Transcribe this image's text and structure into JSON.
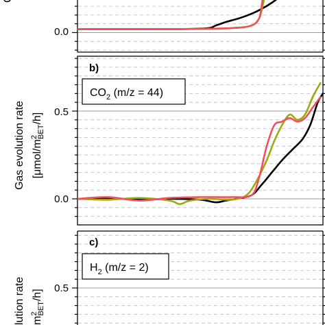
{
  "figure": {
    "panel_a_ylabel_fragment": "C",
    "shared_ylabel_line1": "Gas evolution rate",
    "shared_ylabel_line2_prefix": "[μmol/m",
    "shared_ylabel_line2_sup": "2",
    "shared_ylabel_line2_sub": "BET",
    "shared_ylabel_line2_suffix": "/h]",
    "panel_c_ylabel_line1_fragment": "lution rate",
    "panel_c_ylabel_line2_prefix": "m",
    "panel_c_ylabel_line2_sup": "2",
    "panel_c_ylabel_line2_sub": "BET",
    "panel_c_ylabel_line2_suffix": "/h]",
    "colors": {
      "black": "#000000",
      "olive": "#9aaa10",
      "red": "#f0505a",
      "grid_dash": "#b8b8b8",
      "grid_solid": "#9a9a9a"
    }
  },
  "chart_data": [
    {
      "panel": "a",
      "type": "line",
      "label": "",
      "title": "",
      "ytick_labels": [
        "0.0"
      ],
      "ylim": [
        -0.05,
        0.45
      ],
      "grid": "dashed",
      "series": [
        {
          "color": "black",
          "points": [
            [
              0,
              0.02
            ],
            [
              100,
              0.02
            ],
            [
              200,
              0.02
            ],
            [
              255,
              0.025
            ],
            [
              270,
              0.04
            ],
            [
              290,
              0.06
            ],
            [
              320,
              0.085
            ],
            [
              350,
              0.12
            ],
            [
              380,
              0.17
            ],
            [
              405,
              0.23
            ],
            [
              420,
              0.3
            ],
            [
              430,
              0.35
            ]
          ]
        },
        {
          "color": "olive",
          "points": [
            [
              0,
              0.02
            ],
            [
              100,
              0.02
            ],
            [
              200,
              0.02
            ],
            [
              300,
              0.025
            ],
            [
              340,
              0.04
            ],
            [
              355,
              0.08
            ],
            [
              362,
              0.15
            ],
            [
              368,
              0.24
            ],
            [
              372,
              0.32
            ],
            [
              376,
              0.42
            ]
          ]
        },
        {
          "color": "red",
          "points": [
            [
              0,
              0.02
            ],
            [
              100,
              0.02
            ],
            [
              200,
              0.02
            ],
            [
              300,
              0.025
            ],
            [
              340,
              0.04
            ],
            [
              355,
              0.08
            ],
            [
              360,
              0.15
            ],
            [
              364,
              0.24
            ],
            [
              368,
              0.32
            ],
            [
              371,
              0.42
            ]
          ]
        }
      ]
    },
    {
      "panel": "b",
      "type": "line",
      "label": "b)",
      "legend_text": "CO",
      "legend_sub": "2",
      "legend_suffix": " (m/z = 44)",
      "ytick_labels": [
        "0.0",
        "0.5"
      ],
      "yticks": [
        0,
        0.5
      ],
      "ylim": [
        -0.1,
        0.8
      ],
      "grid": "dashed",
      "series": [
        {
          "color": "black",
          "points": [
            [
              0,
              0
            ],
            [
              60,
              0.005
            ],
            [
              120,
              -0.005
            ],
            [
              180,
              0.0
            ],
            [
              240,
              -0.005
            ],
            [
              270,
              -0.02
            ],
            [
              290,
              -0.01
            ],
            [
              310,
              0.0
            ],
            [
              340,
              0.02
            ],
            [
              360,
              0.08
            ],
            [
              380,
              0.15
            ],
            [
              400,
              0.22
            ],
            [
              420,
              0.28
            ],
            [
              440,
              0.34
            ],
            [
              455,
              0.42
            ],
            [
              470,
              0.55
            ],
            [
              480,
              0.6
            ]
          ]
        },
        {
          "color": "olive",
          "points": [
            [
              0,
              0
            ],
            [
              60,
              -0.005
            ],
            [
              120,
              0.005
            ],
            [
              180,
              -0.01
            ],
            [
              200,
              -0.03
            ],
            [
              220,
              -0.01
            ],
            [
              260,
              0.0
            ],
            [
              300,
              -0.005
            ],
            [
              330,
              0.02
            ],
            [
              350,
              0.1
            ],
            [
              370,
              0.22
            ],
            [
              385,
              0.33
            ],
            [
              400,
              0.42
            ],
            [
              415,
              0.48
            ],
            [
              430,
              0.45
            ],
            [
              445,
              0.48
            ],
            [
              460,
              0.58
            ],
            [
              475,
              0.66
            ]
          ]
        },
        {
          "color": "red",
          "points": [
            [
              0,
              0
            ],
            [
              60,
              0.01
            ],
            [
              120,
              -0.01
            ],
            [
              180,
              0.005
            ],
            [
              240,
              0.01
            ],
            [
              300,
              0.01
            ],
            [
              340,
              0.02
            ],
            [
              355,
              0.12
            ],
            [
              370,
              0.3
            ],
            [
              385,
              0.42
            ],
            [
              400,
              0.44
            ],
            [
              415,
              0.46
            ],
            [
              430,
              0.44
            ],
            [
              445,
              0.46
            ],
            [
              460,
              0.52
            ],
            [
              475,
              0.58
            ]
          ]
        }
      ]
    },
    {
      "panel": "c",
      "type": "line",
      "label": "c)",
      "legend_text": "H",
      "legend_sub": "2",
      "legend_suffix": " (m/z = 2)",
      "ytick_labels": [
        "0.5"
      ],
      "yticks": [
        0.5
      ],
      "ylim": [
        -0.05,
        0.9
      ],
      "grid": "dashed",
      "series": []
    }
  ]
}
